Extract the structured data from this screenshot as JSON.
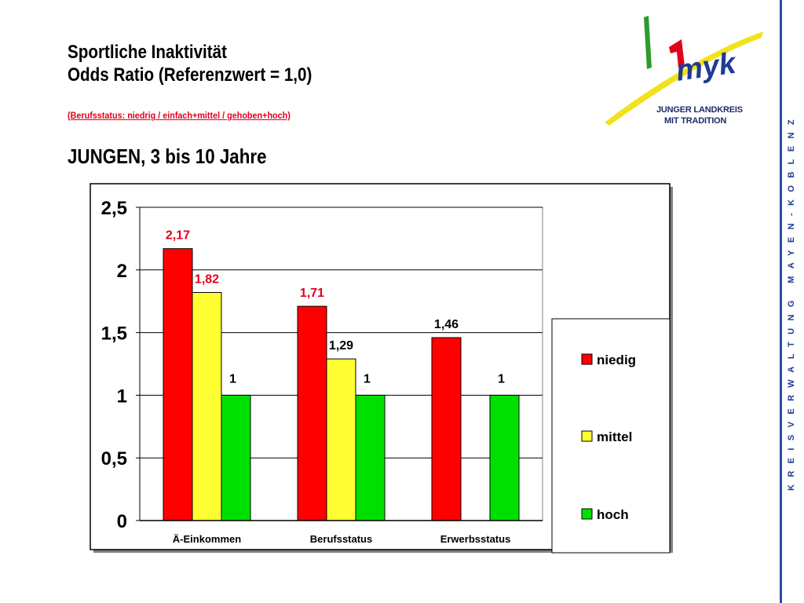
{
  "title": {
    "line1": "Sportliche Inaktivität",
    "line2": "Odds Ratio (Referenzwert = 1,0)"
  },
  "subtitle": "(Berufsstatus: niedrig  /  einfach+mittel  /  gehoben+hoch)",
  "heading": "JUNGEN, 3 bis 10 Jahre",
  "logo": {
    "line1": "JUNGER LANDKREIS",
    "line2": "MIT TRADITION",
    "mark": "myk"
  },
  "sidebar_text": "KREISVERWALTUNG MAYEN-KOBLENZ",
  "colors": {
    "niedig": "#ff0000",
    "mittel": "#ffff33",
    "hoch": "#00e000",
    "label_red": "#e3001b"
  },
  "chart_data": {
    "type": "bar",
    "title": "",
    "xlabel": "",
    "ylabel": "",
    "ylim": [
      0,
      2.5
    ],
    "yticks": [
      0,
      0.5,
      1,
      1.5,
      2,
      2.5
    ],
    "ytick_labels": [
      "0",
      "0,5",
      "1",
      "1,5",
      "2",
      "2,5"
    ],
    "grid": true,
    "legend_position": "right",
    "categories": [
      "Ä-Einkommen",
      "Berufsstatus",
      "Erwerbsstatus"
    ],
    "series": [
      {
        "name": "niedig",
        "values": [
          2.17,
          1.71,
          1.46
        ],
        "labels": [
          "2,17",
          "1,71",
          "1,46"
        ],
        "label_color": [
          "red",
          "red",
          "black"
        ]
      },
      {
        "name": "mittel",
        "values": [
          1.82,
          1.29,
          null
        ],
        "labels": [
          "1,82",
          "1,29",
          ""
        ],
        "label_color": [
          "red",
          "black",
          "black"
        ]
      },
      {
        "name": "hoch",
        "values": [
          1,
          1,
          1
        ],
        "labels": [
          "1",
          "1",
          "1"
        ],
        "label_color": [
          "black",
          "black",
          "black"
        ]
      }
    ]
  }
}
